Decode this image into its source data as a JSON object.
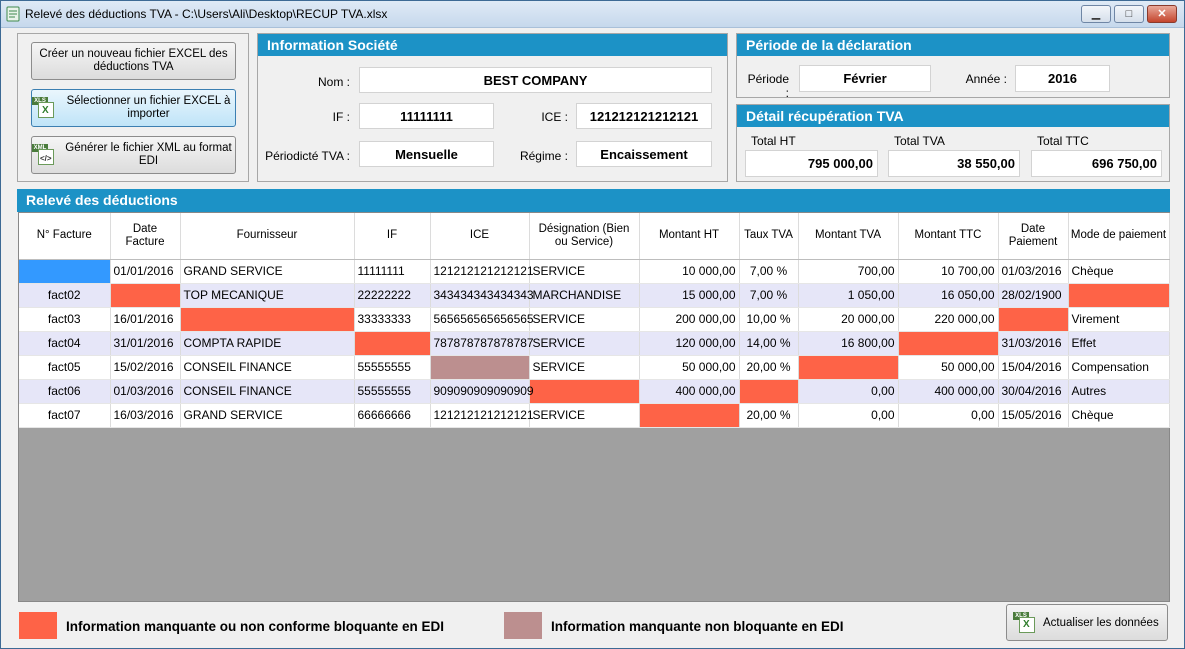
{
  "window": {
    "title": "Relevé des déductions TVA - C:\\Users\\Ali\\Desktop\\RECUP TVA.xlsx",
    "minimize_icon": "minimize-icon",
    "maximize_icon": "maximize-icon",
    "close_icon": "close-icon"
  },
  "actions": {
    "create_label": "Créer un nouveau fichier EXCEL des déductions TVA",
    "select_label": "Sélectionner un fichier EXCEL à importer",
    "generate_label": "Générer le fichier XML au format EDI",
    "refresh_label": "Actualiser les données"
  },
  "company": {
    "header": "Information Société",
    "nom_label": "Nom :",
    "nom": "BEST COMPANY",
    "if_label": "IF :",
    "if": "11111111",
    "ice_label": "ICE :",
    "ice": "121212121212121",
    "periodicite_label": "Périodicté TVA :",
    "periodicite": "Mensuelle",
    "regime_label": "Régime :",
    "regime": "Encaissement"
  },
  "period": {
    "header": "Période de la déclaration",
    "periode_label": "Période :",
    "periode": "Février",
    "annee_label": "Année :",
    "annee": "2016"
  },
  "recup": {
    "header": "Détail récupération TVA",
    "total_ht_label": "Total HT",
    "total_ht": "795 000,00",
    "total_tva_label": "Total TVA",
    "total_tva": "38 550,00",
    "total_ttc_label": "Total TTC",
    "total_ttc": "696 750,00"
  },
  "releve": {
    "header": "Relevé des déductions",
    "columns": [
      "N° Facture",
      "Date Facture",
      "Fournisseur",
      "IF",
      "ICE",
      "Désignation (Bien ou Service)",
      "Montant HT",
      "Taux TVA",
      "Montant TVA",
      "Montant TTC",
      "Date Paiement",
      "Mode de paiement"
    ],
    "rows": [
      [
        "",
        "01/01/2016",
        "GRAND SERVICE",
        "11111111",
        "121212121212121",
        "SERVICE",
        "10 000,00",
        "7,00 %",
        "700,00",
        "10 700,00",
        "01/03/2016",
        "Chèque"
      ],
      [
        "fact02",
        "",
        "TOP MECANIQUE",
        "22222222",
        "343434343434343",
        "MARCHANDISE",
        "15 000,00",
        "7,00 %",
        "1 050,00",
        "16 050,00",
        "28/02/1900",
        ""
      ],
      [
        "fact03",
        "16/01/2016",
        "",
        "33333333",
        "565656565656565",
        "SERVICE",
        "200 000,00",
        "10,00 %",
        "20 000,00",
        "220 000,00",
        "",
        "Virement"
      ],
      [
        "fact04",
        "31/01/2016",
        "COMPTA RAPIDE",
        "",
        "787878787878787",
        "SERVICE",
        "120 000,00",
        "14,00 %",
        "16 800,00",
        "",
        "31/03/2016",
        "Effet"
      ],
      [
        "fact05",
        "15/02/2016",
        "CONSEIL FINANCE",
        "55555555",
        "",
        "SERVICE",
        "50 000,00",
        "20,00 %",
        "",
        "50 000,00",
        "15/04/2016",
        "Compensation"
      ],
      [
        "fact06",
        "01/03/2016",
        "CONSEIL FINANCE",
        "55555555",
        "909090909090909",
        "",
        "400 000,00",
        "",
        "0,00",
        "400 000,00",
        "30/04/2016",
        "Autres"
      ],
      [
        "fact07",
        "16/03/2016",
        "GRAND SERVICE",
        "66666666",
        "121212121212121",
        "SERVICE",
        "",
        "20,00 %",
        "0,00",
        "0,00",
        "15/05/2016",
        "Chèque"
      ]
    ],
    "cell_status": [
      [
        "selected",
        "",
        "",
        "",
        "",
        "",
        "",
        "",
        "",
        "",
        "",
        ""
      ],
      [
        "",
        "bad",
        "",
        "",
        "",
        "",
        "",
        "",
        "",
        "",
        "",
        "bad"
      ],
      [
        "",
        "",
        "bad",
        "",
        "",
        "",
        "",
        "",
        "",
        "",
        "bad",
        ""
      ],
      [
        "",
        "",
        "",
        "bad",
        "",
        "",
        "",
        "",
        "",
        "bad",
        "",
        ""
      ],
      [
        "",
        "",
        "",
        "",
        "warn",
        "",
        "",
        "",
        "bad",
        "",
        "",
        ""
      ],
      [
        "",
        "",
        "",
        "",
        "",
        "bad",
        "",
        "bad",
        "",
        "",
        "",
        ""
      ],
      [
        "",
        "",
        "",
        "",
        "",
        "",
        "bad",
        "",
        "",
        "",
        "",
        ""
      ]
    ]
  },
  "legend": {
    "blocking_text": "Information manquante ou non conforme bloquante en EDI",
    "blocking_color": "#fe6347",
    "nonblocking_text": "Information manquante non bloquante en EDI",
    "nonblocking_color": "#bc8f8f"
  },
  "colors": {
    "header_blue": "#1c92c6",
    "selected_cell": "#3399ff",
    "alt_row": "#e6e6f8"
  }
}
